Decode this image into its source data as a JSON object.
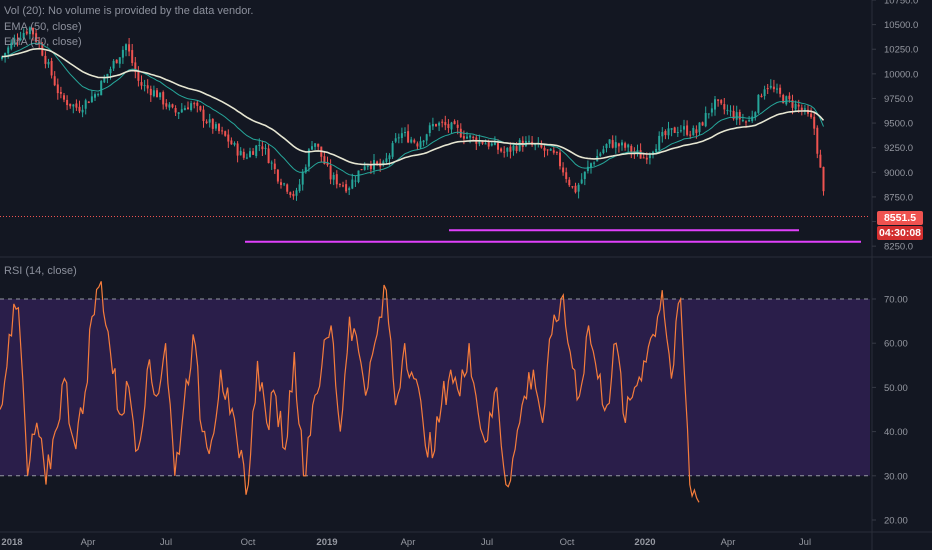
{
  "legend": {
    "volume": "Vol (20): No volume is provided by the data vendor.",
    "ema_fast": "EMA (50, close)",
    "ema_slow": "EMA (50, close)",
    "rsi": "RSI (14, close)"
  },
  "price_scale": {
    "last_price": "8551.5",
    "countdown": "04:30:08"
  },
  "colors": {
    "background": "#131722",
    "candle_up": "#26a69a",
    "candle_down": "#ef5350",
    "ema_fast": "#26a69a",
    "ema_slow": "#e6e6d2",
    "support_line": "#e040fb",
    "rsi_line": "#f57c3c",
    "rsi_band": "#2a1e4a",
    "last_price_tag": "#ef5350"
  },
  "chart_data": [
    {
      "type": "candlestick",
      "ylim": [
        8150,
        10750
      ],
      "y_ticks": [
        "8250.0",
        "8500.0",
        "8750.0",
        "9000.0",
        "9250.0",
        "9500.0",
        "9750.0",
        "10000.0",
        "10250.0",
        "10500.0",
        "10750.0"
      ],
      "x_ticks": [
        "2018",
        "Apr",
        "Jul",
        "Oct",
        "2019",
        "Apr",
        "Jul",
        "Oct",
        "2020",
        "Apr",
        "Jul"
      ],
      "close_path": [
        [
          0,
          10150
        ],
        [
          0.02,
          10380
        ],
        [
          0.035,
          10470
        ],
        [
          0.05,
          10200
        ],
        [
          0.07,
          9750
        ],
        [
          0.09,
          9650
        ],
        [
          0.11,
          9800
        ],
        [
          0.13,
          10100
        ],
        [
          0.145,
          10300
        ],
        [
          0.16,
          9900
        ],
        [
          0.18,
          9800
        ],
        [
          0.2,
          9600
        ],
        [
          0.22,
          9700
        ],
        [
          0.24,
          9500
        ],
        [
          0.26,
          9350
        ],
        [
          0.28,
          9150
        ],
        [
          0.3,
          9300
        ],
        [
          0.32,
          8950
        ],
        [
          0.34,
          8750
        ],
        [
          0.36,
          9350
        ],
        [
          0.38,
          8950
        ],
        [
          0.4,
          8850
        ],
        [
          0.42,
          9100
        ],
        [
          0.44,
          9050
        ],
        [
          0.46,
          9400
        ],
        [
          0.48,
          9300
        ],
        [
          0.5,
          9500
        ],
        [
          0.52,
          9450
        ],
        [
          0.54,
          9350
        ],
        [
          0.56,
          9300
        ],
        [
          0.58,
          9200
        ],
        [
          0.6,
          9300
        ],
        [
          0.62,
          9250
        ],
        [
          0.64,
          9150
        ],
        [
          0.66,
          8800
        ],
        [
          0.68,
          9100
        ],
        [
          0.7,
          9300
        ],
        [
          0.72,
          9250
        ],
        [
          0.74,
          9150
        ],
        [
          0.76,
          9350
        ],
        [
          0.78,
          9450
        ],
        [
          0.8,
          9400
        ],
        [
          0.82,
          9700
        ],
        [
          0.84,
          9600
        ],
        [
          0.86,
          9500
        ],
        [
          0.88,
          9900
        ],
        [
          0.9,
          9750
        ],
        [
          0.92,
          9650
        ],
        [
          0.935,
          9500
        ],
        [
          0.945,
          8900
        ],
        [
          0.95,
          8500
        ]
      ],
      "swing_lows": [
        8340,
        8280
      ],
      "horizontal_lines": [
        {
          "value": 8412,
          "from": "2019-05",
          "to": "2020-06"
        },
        {
          "value": 8295,
          "from": "2018-10",
          "to": "2020-09"
        },
        {
          "value": 8551.5,
          "style": "dotted"
        }
      ]
    },
    {
      "type": "line",
      "series": [
        {
          "values": [
            45,
            62,
            68,
            30,
            42,
            28,
            40,
            52,
            38,
            44,
            66,
            74,
            58,
            44,
            50,
            36,
            54,
            48,
            60,
            30,
            46,
            62,
            40,
            38,
            54,
            44,
            34,
            28,
            56,
            42,
            48,
            36,
            58,
            30,
            46,
            55,
            64,
            40,
            66,
            58,
            50,
            62,
            72,
            46,
            60,
            52,
            42,
            34,
            46,
            54,
            48,
            60,
            44,
            38,
            50,
            28,
            36,
            48,
            54,
            42,
            62,
            70,
            58,
            48,
            64,
            52,
            46,
            60,
            42,
            50,
            56,
            62,
            72,
            52,
            70,
            28,
            24
          ]
        }
      ],
      "ylim": [
        20,
        75
      ],
      "y_ticks": [
        "20.00",
        "30.00",
        "40.00",
        "50.00",
        "60.00",
        "70.00"
      ],
      "reference_lines": [
        70,
        30
      ]
    }
  ]
}
